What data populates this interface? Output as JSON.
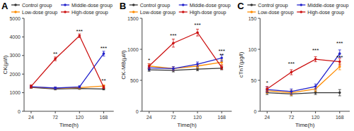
{
  "chart_data": [
    {
      "type": "line",
      "title": "A",
      "xlabel": "Time(h)",
      "ylabel": "CK(μl/l)",
      "x": [
        24,
        72,
        120,
        168
      ],
      "xlim": [
        10,
        188
      ],
      "xticks": [
        24,
        72,
        120,
        168
      ],
      "ylim": [
        0,
        5000
      ],
      "yticks": [
        0,
        1000,
        2000,
        3000,
        4000,
        5000
      ],
      "grid": false,
      "legend": "top",
      "marker": "circle",
      "line_style": "solid",
      "series": [
        {
          "name": "Control group",
          "color": "#333333",
          "values": [
            1280,
            1200,
            1230,
            1200
          ],
          "errors": [
            50,
            50,
            50,
            50
          ]
        },
        {
          "name": "Low-dose group",
          "color": "#FF8C00",
          "values": [
            1300,
            1240,
            1270,
            1360
          ],
          "errors": [
            55,
            55,
            55,
            60
          ]
        },
        {
          "name": "Middle-dose group",
          "color": "#2222CC",
          "values": [
            1320,
            1250,
            1310,
            3100
          ],
          "errors": [
            60,
            60,
            60,
            130
          ]
        },
        {
          "name": "High-dose group",
          "color": "#CC1111",
          "values": [
            1340,
            2820,
            4060,
            1300
          ],
          "errors": [
            80,
            100,
            100,
            70
          ]
        }
      ],
      "annotations": [
        {
          "x": 72,
          "y": 2980,
          "text": "**"
        },
        {
          "x": 120,
          "y": 4220,
          "text": "***"
        },
        {
          "x": 168,
          "y": 3310,
          "text": "***"
        },
        {
          "x": 168,
          "y": 1560,
          "text": "**"
        }
      ]
    },
    {
      "type": "line",
      "title": "B",
      "xlabel": "Time(h)",
      "ylabel": "CK-MB(μl/l)",
      "x": [
        24,
        72,
        120,
        168
      ],
      "xlim": [
        10,
        188
      ],
      "xticks": [
        24,
        72,
        120,
        168
      ],
      "ylim": [
        0,
        1500
      ],
      "yticks": [
        0,
        500,
        1000,
        1500
      ],
      "grid": false,
      "legend": "top",
      "marker": "circle",
      "line_style": "solid",
      "series": [
        {
          "name": "Control group",
          "color": "#333333",
          "values": [
            670,
            660,
            680,
            695
          ],
          "errors": [
            25,
            25,
            25,
            25
          ]
        },
        {
          "name": "Low-dose group",
          "color": "#FF8C00",
          "values": [
            730,
            690,
            730,
            790
          ],
          "errors": [
            35,
            30,
            35,
            40
          ]
        },
        {
          "name": "Middle-dose group",
          "color": "#2222CC",
          "values": [
            700,
            690,
            760,
            860
          ],
          "errors": [
            30,
            30,
            35,
            50
          ]
        },
        {
          "name": "High-dose group",
          "color": "#CC1111",
          "values": [
            730,
            1100,
            1270,
            710
          ],
          "errors": [
            35,
            65,
            55,
            35
          ]
        }
      ],
      "annotations": [
        {
          "x": 24,
          "y": 790,
          "text": "*"
        },
        {
          "x": 72,
          "y": 1195,
          "text": "***"
        },
        {
          "x": 120,
          "y": 1360,
          "text": "***"
        },
        {
          "x": 168,
          "y": 940,
          "text": "***"
        },
        {
          "x": 168,
          "y": 875,
          "text": "**"
        }
      ]
    },
    {
      "type": "line",
      "title": "C",
      "xlabel": "Time(h)",
      "ylabel": "cTnT(μg/l)",
      "x": [
        24,
        72,
        120,
        168
      ],
      "xlim": [
        10,
        188
      ],
      "xticks": [
        24,
        72,
        120,
        168
      ],
      "ylim": [
        0,
        150
      ],
      "yticks": [
        0,
        50,
        100,
        150
      ],
      "grid": false,
      "legend": "top",
      "marker": "circle",
      "line_style": "solid",
      "series": [
        {
          "name": "Control group",
          "color": "#333333",
          "values": [
            30,
            28,
            30,
            30
          ],
          "errors": [
            3,
            3,
            3,
            5
          ]
        },
        {
          "name": "Low-dose group",
          "color": "#FF8C00",
          "values": [
            33,
            30,
            36,
            72
          ],
          "errors": [
            4,
            4,
            4,
            5
          ]
        },
        {
          "name": "Middle-dose group",
          "color": "#2222CC",
          "values": [
            35,
            32,
            40,
            93
          ],
          "errors": [
            4,
            4,
            4,
            6
          ]
        },
        {
          "name": "High-dose group",
          "color": "#CC1111",
          "values": [
            36,
            63,
            84,
            80
          ],
          "errors": [
            4,
            4,
            4,
            5
          ]
        }
      ],
      "annotations": [
        {
          "x": 24,
          "y": 43,
          "text": "*"
        },
        {
          "x": 72,
          "y": 74,
          "text": "***"
        },
        {
          "x": 120,
          "y": 96,
          "text": "***"
        },
        {
          "x": 168,
          "y": 107,
          "text": "***"
        },
        {
          "x": 168,
          "y": 84,
          "text": "***"
        }
      ]
    }
  ]
}
